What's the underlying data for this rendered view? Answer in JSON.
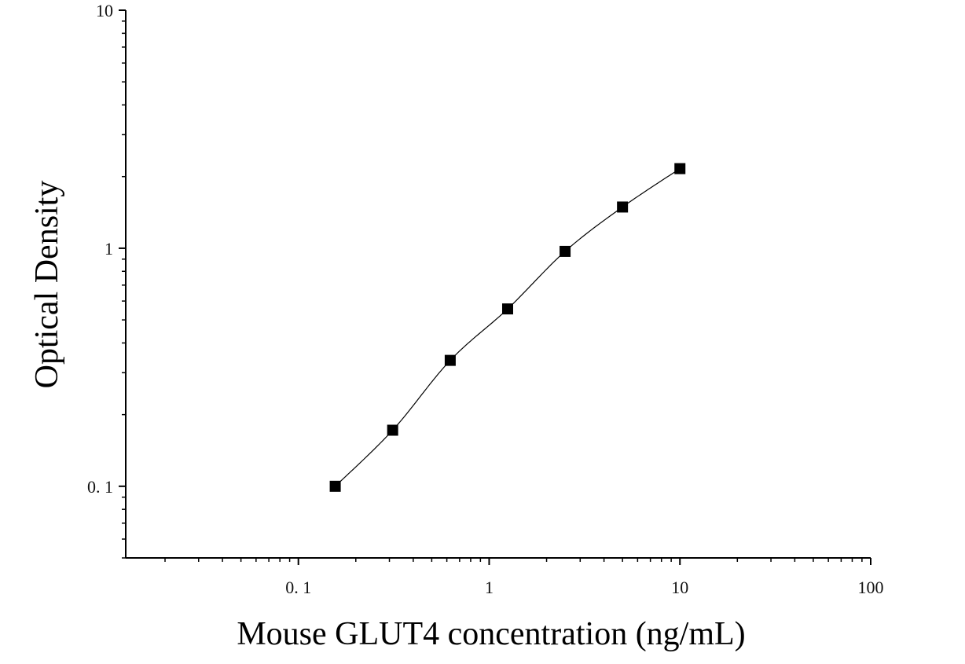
{
  "chart_data": {
    "type": "scatter",
    "title": "",
    "xlabel": "Mouse GLUT4 concentration (ng/mL)",
    "ylabel": "Optical Density",
    "x_scale": "log",
    "y_scale": "log",
    "xlim": [
      0.0125,
      100
    ],
    "ylim": [
      0.05,
      10
    ],
    "x_tick_labels": [
      "0. 1",
      "1",
      "10",
      "100"
    ],
    "y_tick_labels": [
      "0. 1",
      "1",
      "10"
    ],
    "grid": false,
    "legend": "none",
    "colors": {
      "marker": "#000000",
      "line": "#000000",
      "axis": "#000000"
    },
    "series": [
      {
        "marker": "square",
        "x": [
          0.156,
          0.312,
          0.625,
          1.25,
          2.5,
          5,
          10
        ],
        "y": [
          0.1,
          0.172,
          0.338,
          0.556,
          0.97,
          1.49,
          2.16
        ]
      }
    ]
  }
}
